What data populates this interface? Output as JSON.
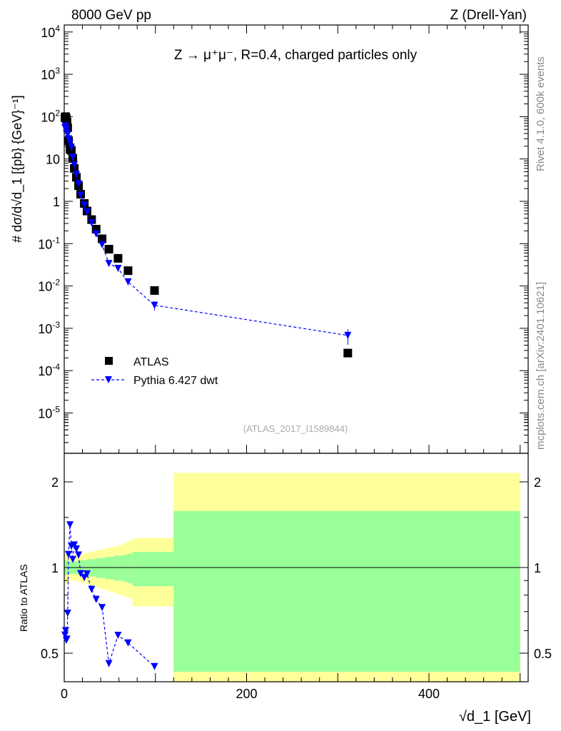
{
  "header": {
    "left": "8000 GeV pp",
    "right": "Z (Drell-Yan)"
  },
  "side": {
    "rivet": "Rivet 4.1.0,  600k events",
    "mcplots": "mcplots.cern.ch [arXiv:2401.10621]"
  },
  "chart_data": [
    {
      "type": "scatter",
      "title": "Z → μ⁺μ⁻, R=0.4, charged particles only",
      "analysis": "(ATLAS_2017_I1589844)",
      "ylabel": "# dσ/d√d_1 [{pb} {GeV}⁻¹]",
      "xlabel": "√d_1 [GeV]",
      "yscale": "log",
      "ylim": [
        2e-06,
        20000
      ],
      "xlim": [
        0,
        508
      ],
      "yticks": [
        "10^4",
        "10^3",
        "10^2",
        "10",
        "1",
        "10^-1",
        "10^-2",
        "10^-3",
        "10^-4",
        "10^-5"
      ],
      "legend_position": "bottom-left",
      "series": [
        {
          "name": "ATLAS",
          "color": "#000000",
          "marker": "square",
          "x": [
            0.8,
            1.5,
            2.2,
            3.0,
            3.8,
            4.7,
            6.3,
            7.8,
            9.4,
            11,
            13.3,
            15.7,
            18,
            22,
            25,
            30,
            35,
            41.5,
            49,
            59,
            70,
            99,
            311
          ],
          "y": [
            95,
            100,
            90,
            75,
            55,
            27,
            17,
            16,
            10.3,
            6,
            3.7,
            2.35,
            1.47,
            0.89,
            0.59,
            0.37,
            0.22,
            0.13,
            0.074,
            0.045,
            0.023,
            0.0078,
            0.00026
          ]
        },
        {
          "name": "Pythia 6.427 dwt",
          "color": "#0000ff",
          "marker": "triangle-down",
          "line": "dashed",
          "x": [
            0.8,
            1.5,
            2.2,
            3.0,
            3.8,
            4.7,
            6.3,
            7.8,
            9.4,
            11,
            13.3,
            15.7,
            18,
            22,
            25,
            30,
            35,
            41.5,
            49,
            59,
            70,
            99,
            311
          ],
          "y": [
            55,
            60,
            50,
            42,
            38,
            30,
            24,
            19,
            11,
            7.2,
            4.3,
            2.6,
            1.4,
            0.82,
            0.56,
            0.31,
            0.17,
            0.094,
            0.034,
            0.026,
            0.0125,
            0.0035,
            0.00068
          ],
          "yerr_rel": [
            0.05,
            0.05,
            0.05,
            0.05,
            0.05,
            0.05,
            0.05,
            0.05,
            0.05,
            0.05,
            0.05,
            0.05,
            0.05,
            0.05,
            0.05,
            0.05,
            0.05,
            0.08,
            0.1,
            0.12,
            0.15,
            0.25,
            0.4
          ]
        }
      ]
    },
    {
      "type": "ratio",
      "ylabel": "Ratio to ATLAS",
      "xlabel": "√d_1 [GeV]",
      "yscale": "log",
      "ylim": [
        0.4,
        2.5
      ],
      "yticks": [
        "0.5",
        "1",
        "2"
      ],
      "xticks": [
        "0",
        "200",
        "400"
      ],
      "bands": {
        "edges": [
          0,
          5,
          10,
          15,
          20,
          25,
          30,
          35,
          40,
          45,
          50,
          55,
          60,
          65,
          70,
          75,
          120,
          500
        ],
        "green_lo": [
          0.94,
          0.95,
          0.95,
          0.94,
          0.94,
          0.93,
          0.93,
          0.92,
          0.92,
          0.91,
          0.91,
          0.9,
          0.9,
          0.89,
          0.88,
          0.86,
          0.43
        ],
        "green_hi": [
          1.06,
          1.05,
          1.05,
          1.06,
          1.06,
          1.07,
          1.07,
          1.08,
          1.08,
          1.09,
          1.09,
          1.1,
          1.1,
          1.11,
          1.12,
          1.135,
          1.58
        ],
        "yellow_lo": [
          0.88,
          0.9,
          0.9,
          0.89,
          0.88,
          0.87,
          0.86,
          0.85,
          0.84,
          0.83,
          0.82,
          0.81,
          0.8,
          0.79,
          0.78,
          0.73,
          0.35
        ],
        "yellow_hi": [
          1.12,
          1.1,
          1.1,
          1.11,
          1.12,
          1.13,
          1.14,
          1.15,
          1.16,
          1.17,
          1.18,
          1.19,
          1.2,
          1.22,
          1.24,
          1.27,
          2.15
        ]
      }
    }
  ]
}
